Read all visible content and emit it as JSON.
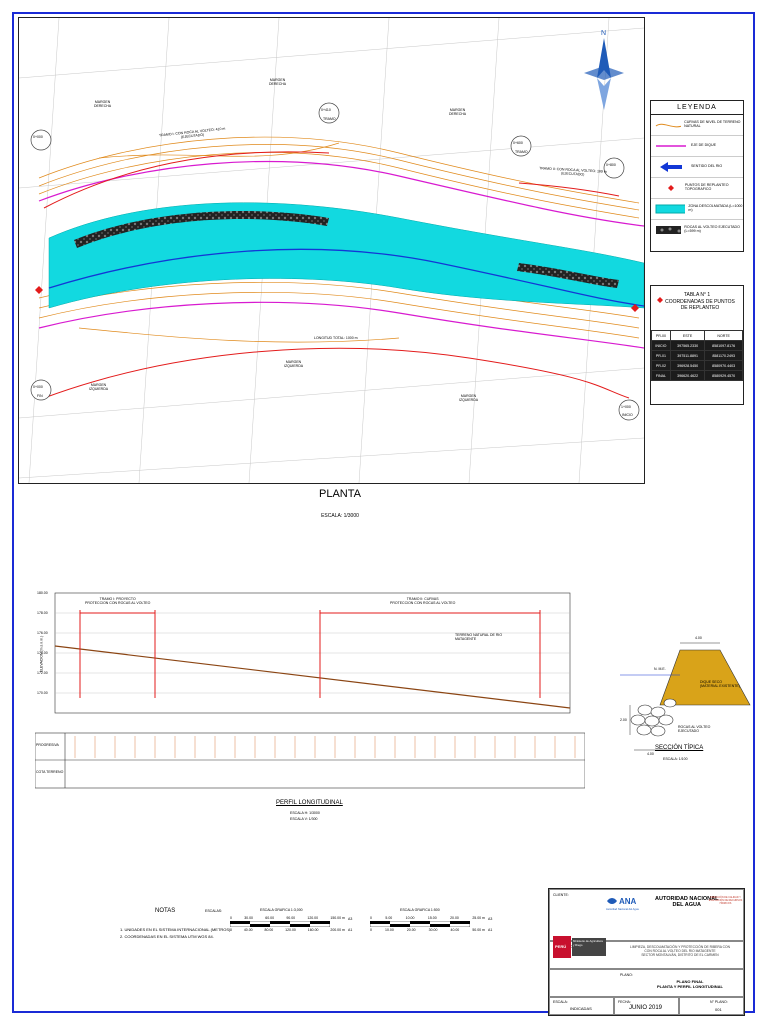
{
  "plan": {
    "label_margen_derecha": "MARGEN\nDERECHA",
    "label_margen_izquierda": "MARGEN\nIZQUIERDA",
    "label_tramo_1": "TRAMO I: CON ROCA AL VOLTEO: 410 m\n(EJECUTADO)",
    "label_tramo_2": "TRAMO II: CON ROCA AL VOLTEO: 189 m\n(EJECUTADO)",
    "label_longitud": "LONGITUD TOTAL: 1000 m",
    "label_tramo": "TRAMO",
    "stations": [
      "0+000",
      "0+410",
      "0+600",
      "0+800",
      "1+000"
    ],
    "label_fin": "FIN",
    "label_inicio": "INICIO",
    "north": "N"
  },
  "legend": {
    "title": "LEYENDA",
    "items": [
      {
        "text": "CURVAS DE NIVEL DE TERRENO NATURAL"
      },
      {
        "text": "EJE DE DIQUE"
      },
      {
        "text": "SENTIDO DEL RIO"
      },
      {
        "text": "PUNTOS DE REPLANTEO TOPOGRAFICO"
      },
      {
        "text": "ZONA DESCOLMATADA (L=1000 m)"
      },
      {
        "text": "ROCAS AL VOLTEO EJECUTADO (L=599 m)"
      }
    ]
  },
  "tabla": {
    "title": "TABLA N° 1",
    "subtitle": "COORDENADAS DE PUNTOS DE REPLANTEO",
    "headers": [
      "PR-00",
      "ESTE",
      "NORTE"
    ],
    "rows": [
      [
        "INICIO",
        "397565.2330",
        "8581097.8176"
      ],
      [
        "PR-01",
        "397511.8891",
        "8581170.2493"
      ],
      [
        "PR-02",
        "396928.5450",
        "8580970.4403"
      ],
      [
        "FINAL",
        "396620.4622",
        "8580929.4570"
      ]
    ]
  },
  "planta": {
    "title": "PLANTA",
    "scale": "ESCALA: 1/3000"
  },
  "profile": {
    "title": "PERFIL LONGITUDINAL",
    "scale_h": "ESCALA H: 1/3000",
    "scale_v": "ESCALA V: 1/300",
    "ylabel": "ELEVACION (m.s.n.m.)",
    "ticks": [
      "180.00",
      "178.00",
      "176.00",
      "174.00",
      "172.00",
      "170.00"
    ],
    "row_labels": [
      "PROGRESIVA",
      "COTA TERRENO"
    ],
    "tramo1": "TRAMO I: PROYECTO\nPROTECCION CON ROCAS AL VOLTEO",
    "tramo2": "TRAMO II: CURVAS\nPROTECCION CON ROCAS AL VOLTEO",
    "label_terreno": "TERRENO NATURAL DE RIO MATAGENTE"
  },
  "seccion": {
    "title": "SECCIÓN TÍPICA",
    "scale": "ESCALA: 1/100",
    "dim_top": "4.00",
    "dim_bottom": "4.00",
    "dim_h": "2.00",
    "label_nivel": "N. M.E.",
    "label_dique": "DIQUE SECO (MATERIAL EXISTENTE)",
    "label_roca": "ROCAS AL VOLTEO EJECUTADO"
  },
  "notes": {
    "title": "NOTAS",
    "items": [
      "1. UNIDADES EN EL SISTEMA INTERNACIONAL (METROS).",
      "2. COORDENADAS EN EL SISTEMA UTM WGS 84."
    ]
  },
  "scales": {
    "label": "ESCALAS:",
    "bar1_title": "ESCALA GRAFICA 1:3,000",
    "bar1_top": [
      "0",
      "30.00",
      "60.00",
      "90.00",
      "120.00",
      "150.00 m"
    ],
    "bar1_bottom": [
      "0",
      "40.00",
      "80.00",
      "120.00",
      "160.00",
      "200.00 m"
    ],
    "bar2_title": "ESCALA GRAFICA 1:500",
    "bar2_top": [
      "0",
      "5.00",
      "10.00",
      "15.00",
      "20.00",
      "25.00 m"
    ],
    "bar2_bottom": [
      "0",
      "10.00",
      "20.00",
      "30.00",
      "40.00",
      "50.00 m"
    ],
    "sheet_a3": "A3",
    "sheet_a1": "A1"
  },
  "ministry": {
    "peru": "PERÚ",
    "name": "Ministerio de Agricultura y Riego"
  },
  "titleblock": {
    "cliente_label": "CLIENTE:",
    "ana_logo": "ANA",
    "ana_sub": "Autoridad Nacional del Agua",
    "authority": "AUTORIDAD NACIONAL\nDEL AGUA",
    "proyecto_label": "PROYECTO:",
    "proyecto": "LIMPIEZA, DESCOLMATACIÓN Y PROTECCIÓN DE RIBERA CON\nCON ROCA AL VOLTEO DEL RIO MATAGENTE\nSECTOR MONTALVÁN, DISTRITO DE EL CARMEN",
    "plano_label": "PLANO:",
    "plano": "PLANO FINAL\nPLANTA Y PERFIL LONGITUDINAL",
    "escala_label": "ESCALA:",
    "escala": "INDICADAS",
    "fecha_label": "FECHA:",
    "fecha": "JUNIO 2019",
    "lamina_label": "N° PLANO:",
    "lamina": "001",
    "dir_label": "DIRECCIÓN DE CALIDAD Y EVALUACIÓN DE RECURSOS HÍDRICOS"
  },
  "colors": {
    "river_fill": "#12d9e0",
    "contour": "#e08a1c",
    "dike_axis": "#d81ad0",
    "river_axis": "#1237d6",
    "red": "#e31b1b",
    "frame": "#1a2bd6",
    "dike_section": "#d9a319"
  }
}
